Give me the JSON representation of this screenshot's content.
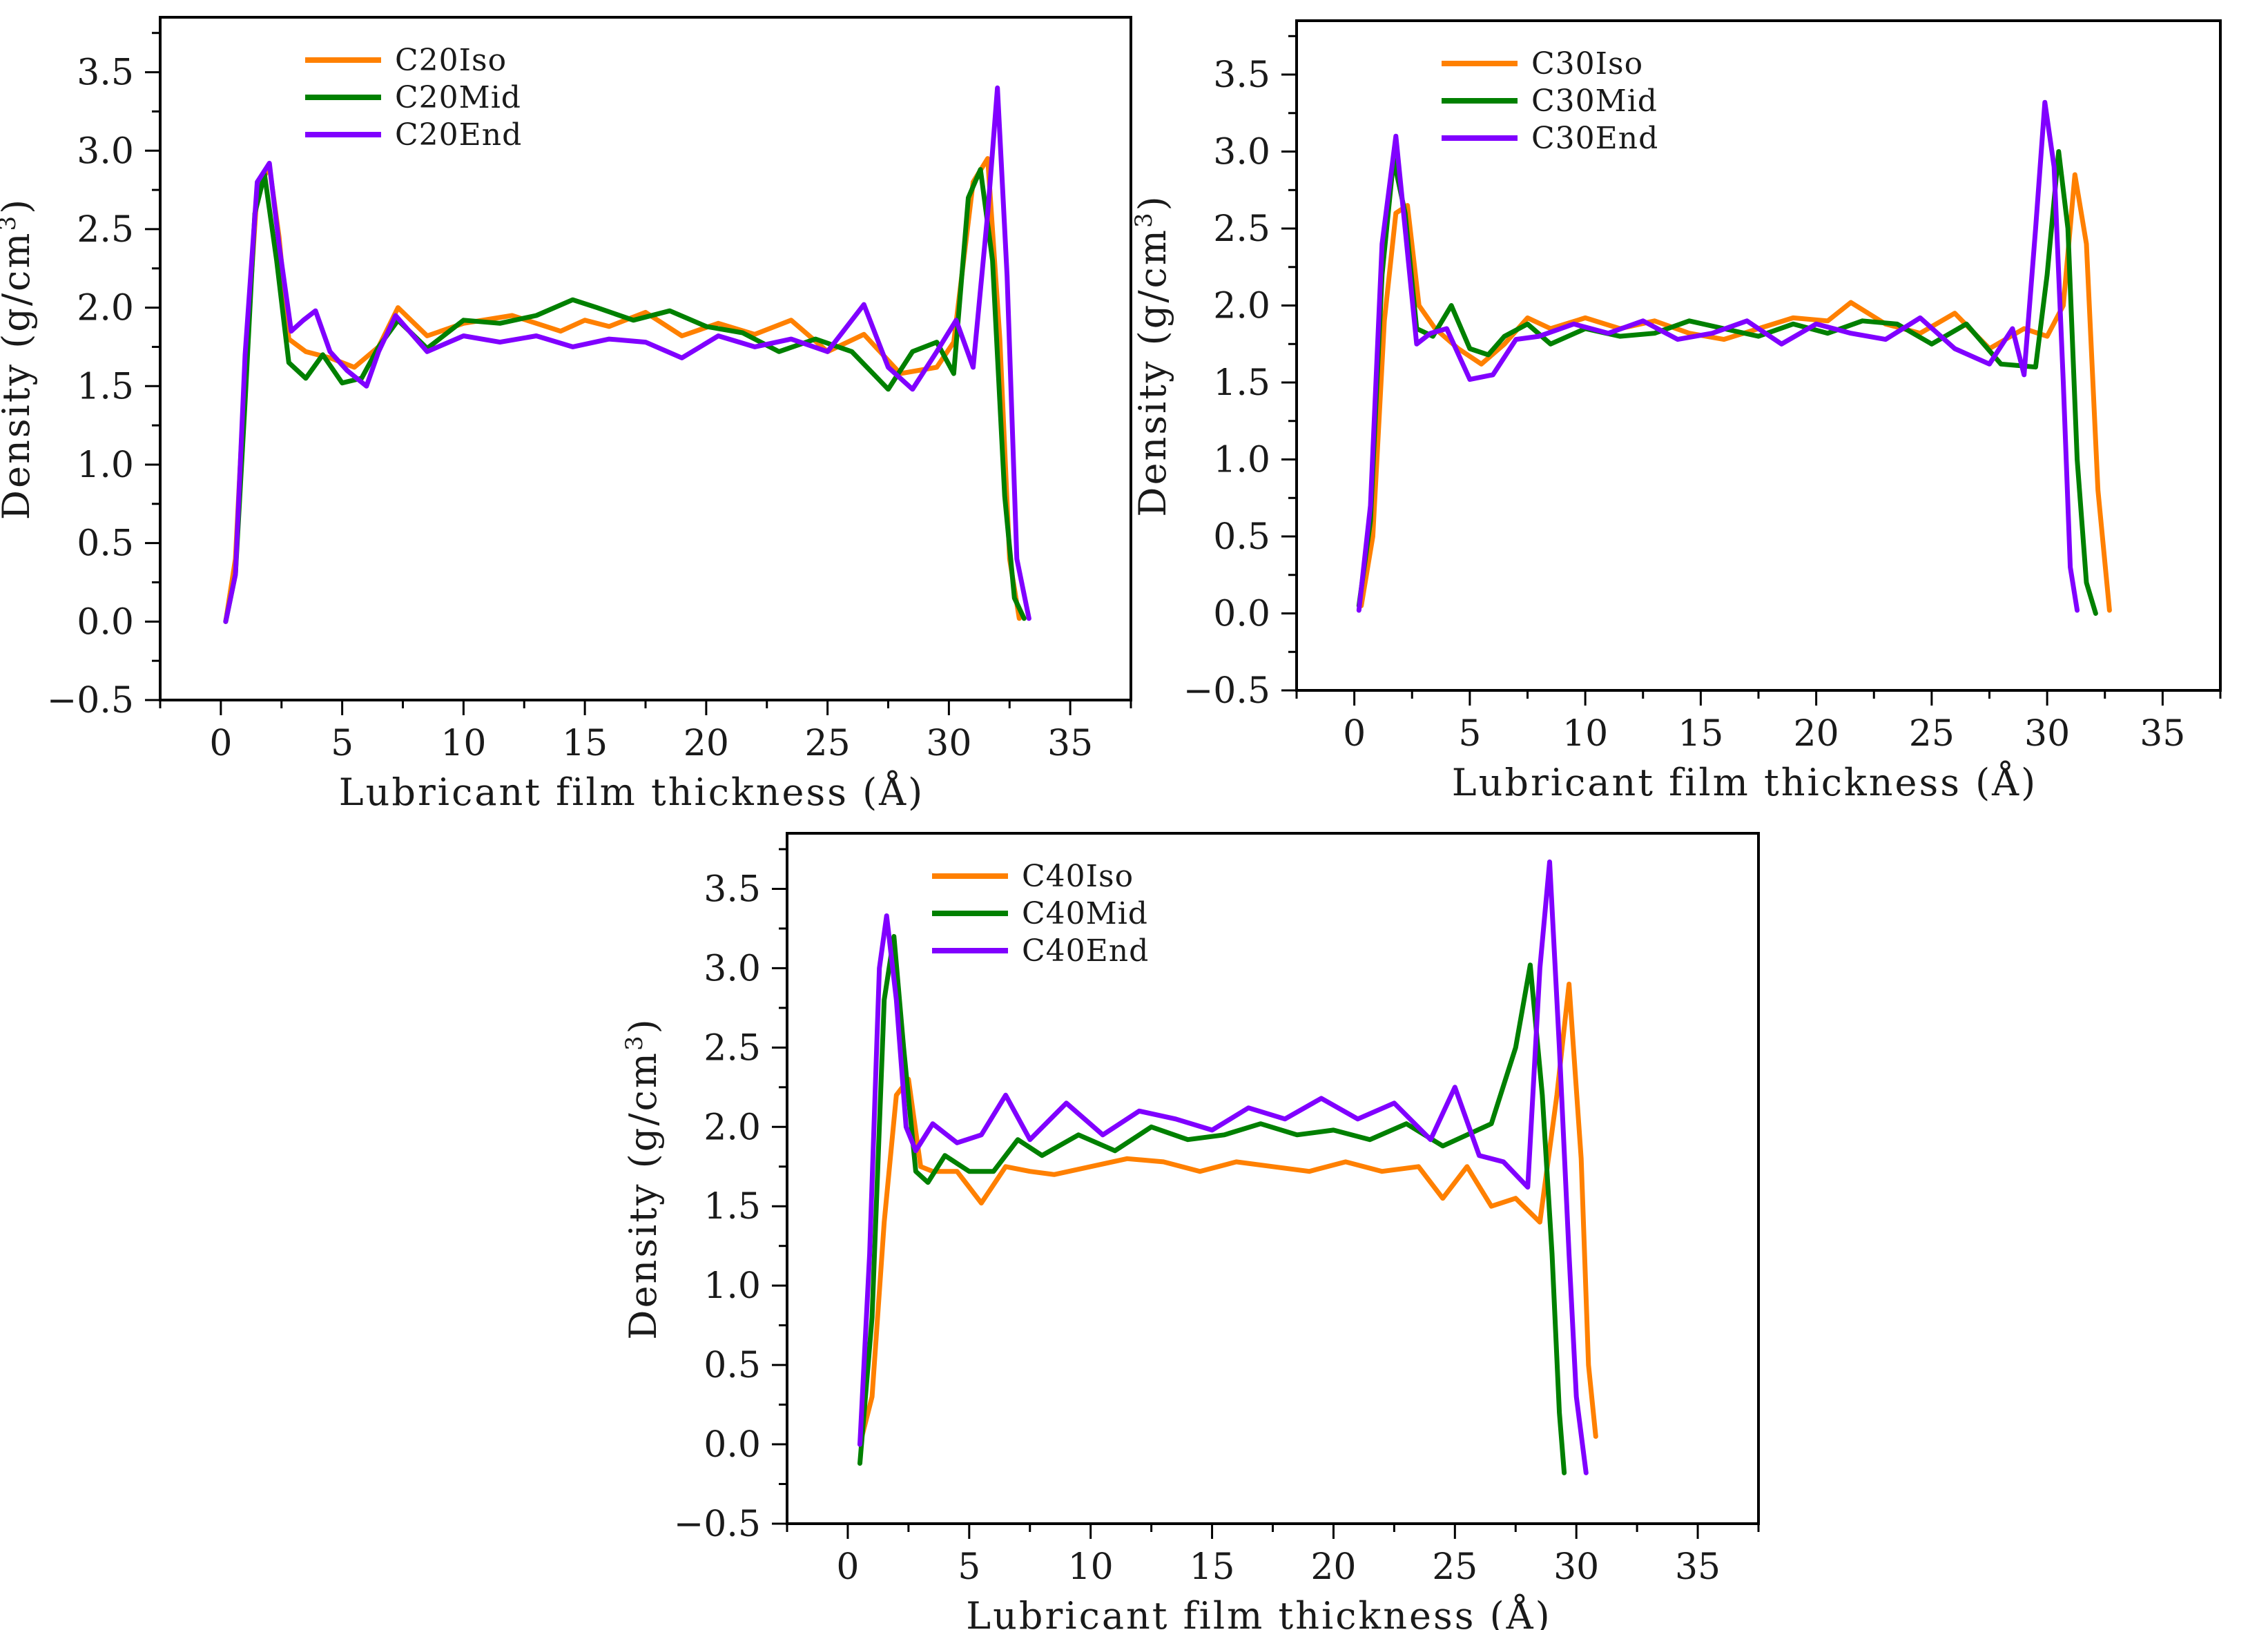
{
  "colors": {
    "iso": "#ff8000",
    "mid": "#008000",
    "end": "#8000ff",
    "axis": "#000000"
  },
  "chart_data": [
    {
      "type": "line",
      "xlabel": "Lubricant film thickness (Å)",
      "ylabel": "Density (g/cm3)",
      "ylabel_base": "Density (g/cm",
      "ylabel_sup": "3",
      "ylabel_close": ")",
      "xlim": [
        -2.5,
        37.5
      ],
      "ylim": [
        -0.5,
        3.85
      ],
      "xticks": [
        0,
        5,
        10,
        15,
        20,
        25,
        30,
        35
      ],
      "xtick_labels": [
        "0",
        "5",
        "10",
        "15",
        "20",
        "25",
        "30",
        "35"
      ],
      "yticks": [
        -0.5,
        0.0,
        0.5,
        1.0,
        1.5,
        2.0,
        2.5,
        3.0,
        3.5
      ],
      "ytick_labels": [
        "−0.5",
        "0.0",
        "0.5",
        "1.0",
        "1.5",
        "2.0",
        "2.5",
        "3.0",
        "3.5"
      ],
      "legend": "top-left",
      "series": [
        {
          "name": "C20Iso",
          "color_key": "iso",
          "x": [
            0.2,
            0.6,
            1.0,
            1.5,
            2.0,
            2.4,
            2.8,
            3.5,
            4.5,
            5.5,
            6.5,
            7.3,
            8.5,
            10,
            12,
            14,
            15,
            16,
            17.5,
            19,
            20.5,
            22,
            23.5,
            25,
            26.5,
            28,
            29.5,
            30.2,
            31.0,
            31.6,
            32.1,
            32.5,
            32.9
          ],
          "y": [
            0.0,
            0.4,
            1.6,
            2.75,
            2.9,
            2.45,
            1.8,
            1.72,
            1.68,
            1.62,
            1.75,
            2.0,
            1.82,
            1.9,
            1.95,
            1.85,
            1.92,
            1.88,
            1.97,
            1.82,
            1.9,
            1.83,
            1.92,
            1.72,
            1.83,
            1.58,
            1.62,
            1.78,
            2.8,
            2.95,
            1.8,
            0.4,
            0.02
          ]
        },
        {
          "name": "C20Mid",
          "color_key": "mid",
          "x": [
            0.2,
            0.6,
            1.0,
            1.4,
            1.8,
            2.3,
            2.8,
            3.5,
            4.2,
            5.0,
            5.8,
            6.5,
            7.3,
            8.5,
            10,
            11.5,
            13,
            14.5,
            15.5,
            17,
            18.5,
            20,
            21.5,
            23,
            24.5,
            26,
            27.5,
            28.5,
            29.5,
            30.2,
            30.8,
            31.3,
            31.8,
            32.3,
            32.7,
            33.1
          ],
          "y": [
            0.0,
            0.3,
            1.4,
            2.6,
            2.85,
            2.3,
            1.65,
            1.55,
            1.7,
            1.52,
            1.55,
            1.75,
            1.92,
            1.74,
            1.92,
            1.9,
            1.95,
            2.05,
            2.0,
            1.92,
            1.98,
            1.88,
            1.84,
            1.72,
            1.8,
            1.72,
            1.48,
            1.72,
            1.78,
            1.58,
            2.7,
            2.88,
            2.3,
            0.8,
            0.15,
            0.02
          ]
        },
        {
          "name": "C20End",
          "color_key": "end",
          "x": [
            0.2,
            0.6,
            1.0,
            1.5,
            2.0,
            2.4,
            2.9,
            3.4,
            3.9,
            4.5,
            5.2,
            6.0,
            6.5,
            7.2,
            8.5,
            10,
            11.5,
            13,
            14.5,
            16,
            17.5,
            19,
            20.5,
            22,
            23.5,
            25,
            26.5,
            27.5,
            28.5,
            29.5,
            30.3,
            31.0,
            31.6,
            32.0,
            32.4,
            32.8,
            33.3
          ],
          "y": [
            0.0,
            0.3,
            1.7,
            2.8,
            2.92,
            2.4,
            1.85,
            1.92,
            1.98,
            1.72,
            1.6,
            1.5,
            1.72,
            1.95,
            1.72,
            1.82,
            1.78,
            1.82,
            1.75,
            1.8,
            1.78,
            1.68,
            1.82,
            1.75,
            1.8,
            1.72,
            2.02,
            1.62,
            1.48,
            1.72,
            1.92,
            1.62,
            2.6,
            3.4,
            2.2,
            0.4,
            0.02
          ]
        }
      ]
    },
    {
      "type": "line",
      "xlabel": "Lubricant film thickness (Å)",
      "ylabel": "Density (g/cm3)",
      "ylabel_base": "Density (g/cm",
      "ylabel_sup": "3",
      "ylabel_close": ")",
      "xlim": [
        -2.5,
        37.5
      ],
      "ylim": [
        -0.5,
        3.85
      ],
      "xticks": [
        0,
        5,
        10,
        15,
        20,
        25,
        30,
        35
      ],
      "xtick_labels": [
        "0",
        "5",
        "10",
        "15",
        "20",
        "25",
        "30",
        "35"
      ],
      "yticks": [
        -0.5,
        0.0,
        0.5,
        1.0,
        1.5,
        2.0,
        2.5,
        3.0,
        3.5
      ],
      "ytick_labels": [
        "−0.5",
        "0.0",
        "0.5",
        "1.0",
        "1.5",
        "2.0",
        "2.5",
        "3.0",
        "3.5"
      ],
      "legend": "top-left",
      "series": [
        {
          "name": "C30Iso",
          "color_key": "iso",
          "x": [
            0.3,
            0.8,
            1.3,
            1.8,
            2.3,
            2.8,
            3.5,
            4.5,
            5.5,
            6.5,
            7.5,
            8.5,
            10,
            11.5,
            13,
            14.5,
            16,
            17.5,
            19,
            20.5,
            21.5,
            23,
            24.5,
            26,
            27.5,
            29,
            30.0,
            30.7,
            31.2,
            31.7,
            32.2,
            32.7
          ],
          "y": [
            0.05,
            0.5,
            1.9,
            2.6,
            2.65,
            2.0,
            1.85,
            1.72,
            1.62,
            1.75,
            1.92,
            1.85,
            1.92,
            1.85,
            1.9,
            1.82,
            1.78,
            1.85,
            1.92,
            1.9,
            2.02,
            1.88,
            1.82,
            1.95,
            1.72,
            1.85,
            1.8,
            2.0,
            2.85,
            2.4,
            0.8,
            0.02
          ]
        },
        {
          "name": "C30Mid",
          "color_key": "mid",
          "x": [
            0.2,
            0.7,
            1.2,
            1.7,
            2.2,
            2.7,
            3.4,
            4.2,
            5.0,
            5.8,
            6.5,
            7.5,
            8.5,
            10,
            11.5,
            13,
            14.5,
            16,
            17.5,
            19,
            20.5,
            22,
            23.5,
            25,
            26.5,
            28,
            29.5,
            30.0,
            30.5,
            30.9,
            31.3,
            31.7,
            32.1
          ],
          "y": [
            0.05,
            0.6,
            2.2,
            2.95,
            2.6,
            1.85,
            1.8,
            2.0,
            1.72,
            1.68,
            1.8,
            1.88,
            1.75,
            1.85,
            1.8,
            1.82,
            1.9,
            1.85,
            1.8,
            1.88,
            1.82,
            1.9,
            1.88,
            1.75,
            1.88,
            1.62,
            1.6,
            2.2,
            3.0,
            2.5,
            1.0,
            0.2,
            0.0
          ]
        },
        {
          "name": "C30End",
          "color_key": "end",
          "x": [
            0.2,
            0.7,
            1.2,
            1.8,
            2.2,
            2.7,
            3.3,
            4.0,
            5.0,
            6.0,
            7.0,
            8.0,
            9.5,
            11,
            12.5,
            14,
            15.5,
            17,
            18.5,
            20,
            21.5,
            23,
            24.5,
            26,
            27.5,
            28.5,
            29.0,
            29.5,
            29.9,
            30.3,
            30.7,
            31.0,
            31.3
          ],
          "y": [
            0.02,
            0.7,
            2.4,
            3.1,
            2.5,
            1.75,
            1.82,
            1.85,
            1.52,
            1.55,
            1.78,
            1.8,
            1.88,
            1.82,
            1.9,
            1.78,
            1.82,
            1.9,
            1.75,
            1.88,
            1.82,
            1.78,
            1.92,
            1.72,
            1.62,
            1.85,
            1.55,
            2.5,
            3.32,
            2.9,
            1.5,
            0.3,
            0.02
          ]
        }
      ]
    },
    {
      "type": "line",
      "xlabel": "Lubricant film thickness (Å)",
      "ylabel": "Density (g/cm3)",
      "ylabel_base": "Density (g/cm",
      "ylabel_sup": "3",
      "ylabel_close": ")",
      "xlim": [
        -2.5,
        37.5
      ],
      "ylim": [
        -0.5,
        3.85
      ],
      "xticks": [
        0,
        5,
        10,
        15,
        20,
        25,
        30,
        35
      ],
      "xtick_labels": [
        "0",
        "5",
        "10",
        "15",
        "20",
        "25",
        "30",
        "35"
      ],
      "yticks": [
        -0.5,
        0.0,
        0.5,
        1.0,
        1.5,
        2.0,
        2.5,
        3.0,
        3.5
      ],
      "ytick_labels": [
        "−0.5",
        "0.0",
        "0.5",
        "1.0",
        "1.5",
        "2.0",
        "2.5",
        "3.0",
        "3.5"
      ],
      "legend": "top-left",
      "series": [
        {
          "name": "C40Iso",
          "color_key": "iso",
          "x": [
            0.5,
            1.0,
            1.5,
            2.0,
            2.5,
            3.0,
            3.5,
            4.5,
            5.5,
            6.5,
            7.5,
            8.5,
            10,
            11.5,
            13,
            14.5,
            16,
            17.5,
            19,
            20.5,
            22,
            23.5,
            24.5,
            25.5,
            26.5,
            27.5,
            28.5,
            29.2,
            29.7,
            30.2,
            30.5,
            30.8
          ],
          "y": [
            0.0,
            0.3,
            1.4,
            2.2,
            2.3,
            1.75,
            1.72,
            1.72,
            1.52,
            1.75,
            1.72,
            1.7,
            1.75,
            1.8,
            1.78,
            1.72,
            1.78,
            1.75,
            1.72,
            1.78,
            1.72,
            1.75,
            1.55,
            1.75,
            1.5,
            1.55,
            1.4,
            2.2,
            2.9,
            1.8,
            0.5,
            0.05
          ]
        },
        {
          "name": "C40Mid",
          "color_key": "mid",
          "x": [
            0.5,
            1.0,
            1.5,
            1.9,
            2.3,
            2.8,
            3.3,
            4.0,
            5.0,
            6.0,
            7.0,
            8.0,
            9.5,
            11,
            12.5,
            14,
            15.5,
            17,
            18.5,
            20,
            21.5,
            23,
            24.5,
            25.5,
            26.5,
            27.5,
            28.1,
            28.6,
            29.0,
            29.3,
            29.5
          ],
          "y": [
            -0.12,
            0.8,
            2.8,
            3.2,
            2.5,
            1.72,
            1.65,
            1.82,
            1.72,
            1.72,
            1.92,
            1.82,
            1.95,
            1.85,
            2.0,
            1.92,
            1.95,
            2.02,
            1.95,
            1.98,
            1.92,
            2.02,
            1.88,
            1.95,
            2.02,
            2.5,
            3.02,
            2.2,
            1.2,
            0.2,
            -0.18
          ]
        },
        {
          "name": "C40End",
          "color_key": "end",
          "x": [
            0.5,
            0.9,
            1.3,
            1.6,
            2.0,
            2.4,
            2.8,
            3.5,
            4.5,
            5.5,
            6.5,
            7.5,
            9.0,
            10.5,
            12,
            13.5,
            15,
            16.5,
            18,
            19.5,
            21,
            22.5,
            24,
            25,
            26,
            27,
            28.0,
            28.5,
            28.9,
            29.3,
            29.7,
            30.0,
            30.4
          ],
          "y": [
            0.0,
            1.2,
            3.0,
            3.33,
            2.8,
            2.0,
            1.85,
            2.02,
            1.9,
            1.95,
            2.2,
            1.92,
            2.15,
            1.95,
            2.1,
            2.05,
            1.98,
            2.12,
            2.05,
            2.18,
            2.05,
            2.15,
            1.92,
            2.25,
            1.82,
            1.78,
            1.62,
            3.0,
            3.67,
            2.5,
            1.2,
            0.3,
            -0.18
          ]
        }
      ]
    }
  ]
}
